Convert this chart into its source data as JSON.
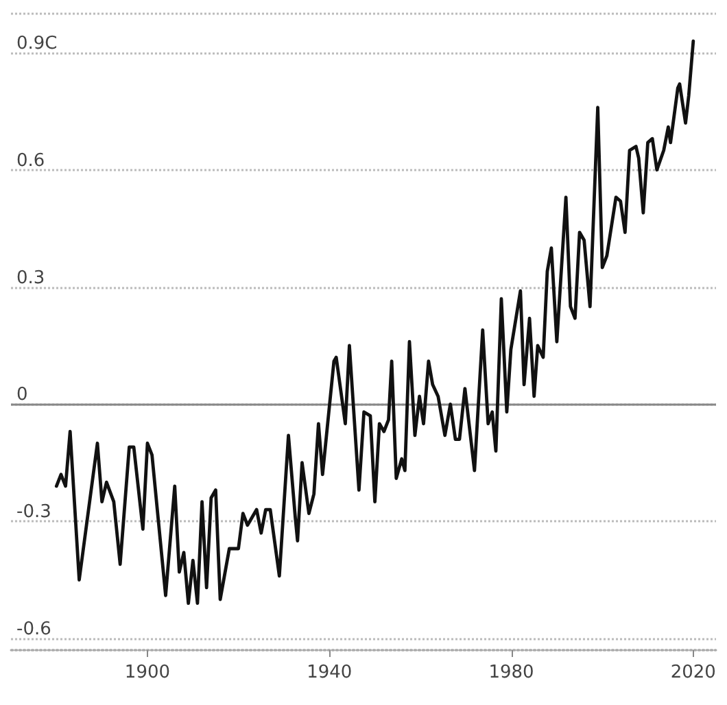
{
  "chart_data": {
    "type": "line",
    "color": "#111111",
    "line_style": "solid",
    "marker": "none",
    "grid": "y",
    "xlim": [
      1870,
      2025
    ],
    "xticks": [
      1900,
      1940,
      1980,
      2020
    ],
    "ylim": [
      -0.63,
      1.0
    ],
    "yticks": [
      {
        "value": -0.6,
        "label": "-0.6"
      },
      {
        "value": -0.3,
        "label": "-0.3"
      },
      0,
      0.3,
      0.6,
      {
        "value": 0.9,
        "label": "0.9C"
      }
    ],
    "ref_lines": [
      {
        "axis": "y",
        "value": 0,
        "color": "#888888",
        "line_style": "solid"
      }
    ],
    "x": [
      1880,
      1881,
      1882,
      1883,
      1885,
      1889,
      1890,
      1891,
      1892.6,
      1894,
      1896,
      1897,
      1899,
      1900,
      1901,
      1904,
      1906,
      1907,
      1908,
      1909,
      1910,
      1911,
      1912,
      1913,
      1914,
      1915,
      1916,
      1918,
      1920,
      1921,
      1922,
      1924,
      1925,
      1926,
      1927,
      1929,
      1931,
      1932.5,
      1933,
      1934,
      1935.5,
      1936.6,
      1937.6,
      1938.5,
      1941,
      1941.5,
      1943.5,
      1944.4,
      1946.5,
      1947.6,
      1949,
      1950,
      1951,
      1952,
      1953,
      1953.7,
      1954.7,
      1955.9,
      1956.6,
      1957.6,
      1958.8,
      1959.8,
      1960.7,
      1961.8,
      1962.7,
      1963.9,
      1965.4,
      1966.6,
      1967.7,
      1968.6,
      1969.8,
      1971.9,
      1973.7,
      1974.9,
      1975.8,
      1976.6,
      1977.8,
      1979,
      1979.9,
      1982,
      1982.8,
      1984,
      1985,
      1985.8,
      1987,
      1987.9,
      1988.8,
      1990,
      1992,
      1993,
      1994,
      1995,
      1996,
      1997.3,
      1999,
      2000,
      2001,
      2003,
      2004,
      2005,
      2006,
      2007.4,
      2008,
      2009,
      2010,
      2011,
      2012,
      2013.5,
      2014.5,
      2015,
      2016.6,
      2017,
      2018.3,
      2019,
      2020
    ],
    "values": [
      -0.21,
      -0.18,
      -0.21,
      -0.07,
      -0.45,
      -0.1,
      -0.25,
      -0.2,
      -0.25,
      -0.41,
      -0.11,
      -0.11,
      -0.32,
      -0.1,
      -0.13,
      -0.49,
      -0.21,
      -0.43,
      -0.38,
      -0.51,
      -0.4,
      -0.51,
      -0.25,
      -0.47,
      -0.24,
      -0.22,
      -0.5,
      -0.37,
      -0.37,
      -0.28,
      -0.31,
      -0.27,
      -0.33,
      -0.27,
      -0.27,
      -0.44,
      -0.08,
      -0.29,
      -0.35,
      -0.15,
      -0.28,
      -0.23,
      -0.05,
      -0.18,
      0.11,
      0.12,
      -0.05,
      0.15,
      -0.22,
      -0.02,
      -0.03,
      -0.25,
      -0.05,
      -0.07,
      -0.04,
      0.11,
      -0.19,
      -0.14,
      -0.17,
      0.16,
      -0.08,
      0.02,
      -0.05,
      0.11,
      0.05,
      0.02,
      -0.08,
      0,
      -0.09,
      -0.09,
      0.04,
      -0.17,
      0.19,
      -0.05,
      -0.02,
      -0.12,
      0.27,
      -0.02,
      0.14,
      0.29,
      0.05,
      0.22,
      0.02,
      0.15,
      0.12,
      0.34,
      0.4,
      0.16,
      0.53,
      0.25,
      0.22,
      0.44,
      0.42,
      0.25,
      0.76,
      0.35,
      0.38,
      0.53,
      0.52,
      0.44,
      0.65,
      0.66,
      0.63,
      0.49,
      0.67,
      0.68,
      0.6,
      0.65,
      0.71,
      0.67,
      0.81,
      0.82,
      0.72,
      0.79,
      0.93
    ]
  }
}
